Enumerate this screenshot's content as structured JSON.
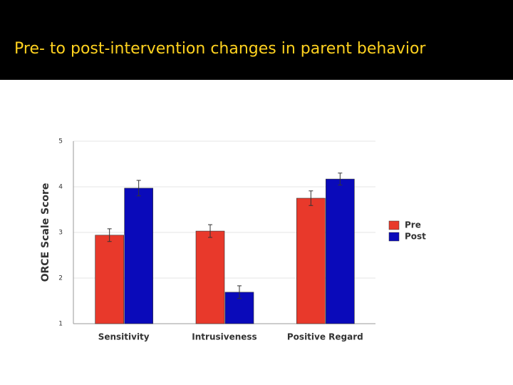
{
  "header": {
    "title": "Pre- to post-intervention changes in parent behavior"
  },
  "chart_data": {
    "type": "bar",
    "ylabel": "ORCE Scale Score",
    "categories": [
      "Sensitivity",
      "Intrusiveness",
      "Positive Regard"
    ],
    "series": [
      {
        "name": "Pre",
        "color": "#e8392b",
        "values": [
          2.94,
          3.03,
          3.75
        ],
        "errors": [
          0.14,
          0.14,
          0.16
        ]
      },
      {
        "name": "Post",
        "color": "#0a0aba",
        "values": [
          3.97,
          1.69,
          4.17
        ],
        "errors": [
          0.17,
          0.14,
          0.13
        ]
      }
    ],
    "ylim": [
      1,
      5
    ],
    "yticks": [
      1,
      2,
      3,
      4,
      5
    ],
    "grid": true
  }
}
